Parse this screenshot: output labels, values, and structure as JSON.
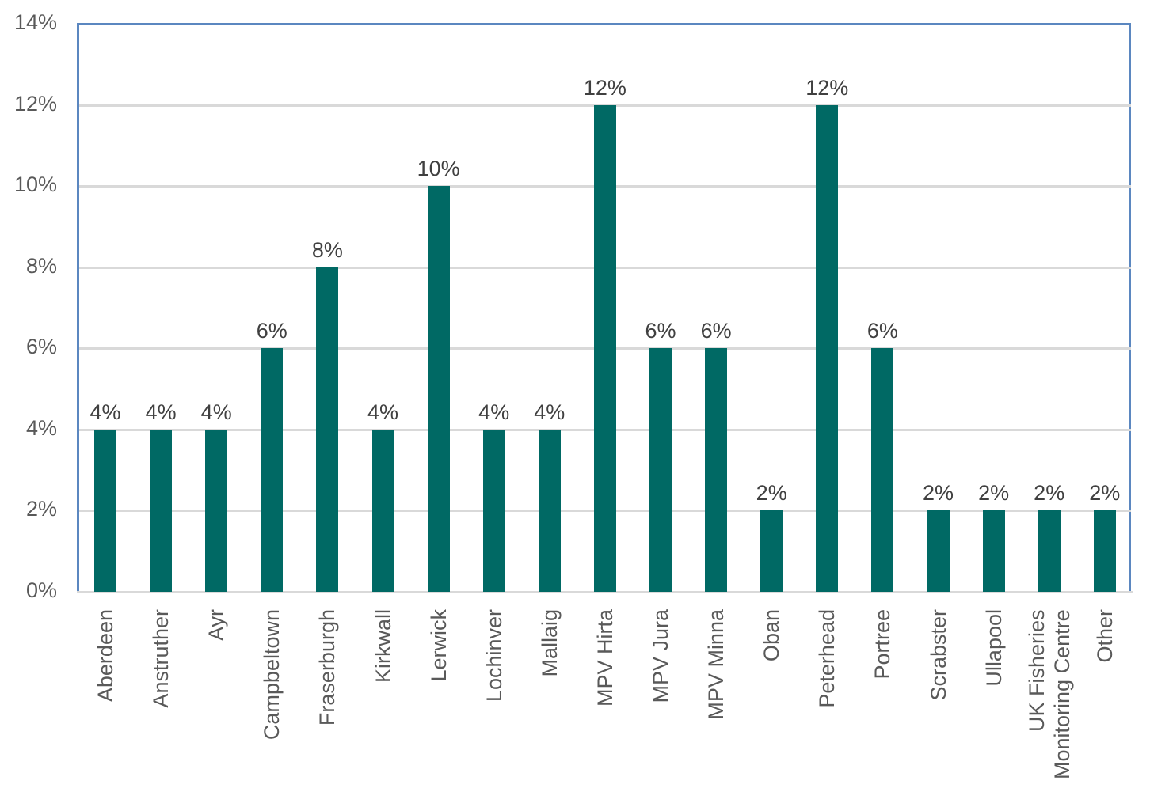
{
  "chart_data": {
    "type": "bar",
    "title": "",
    "xlabel": "",
    "ylabel": "",
    "ylim": [
      0,
      14
    ],
    "yticks": [
      "0%",
      "2%",
      "4%",
      "6%",
      "8%",
      "10%",
      "12%",
      "14%"
    ],
    "grid": true,
    "legend": null,
    "bar_color": "#006964",
    "frame_color": "#5b87c0",
    "categories": [
      "Aberdeen",
      "Anstruther",
      "Ayr",
      "Campbeltown",
      "Fraserburgh",
      "Kirkwall",
      "Lerwick",
      "Lochinver",
      "Mallaig",
      "MPV Hirta",
      "MPV Jura",
      "MPV Minna",
      "Oban",
      "Peterhead",
      "Portree",
      "Scrabster",
      "Ullapool",
      "UK Fisheries Monitoring Centre",
      "Other"
    ],
    "values": [
      4,
      4,
      4,
      6,
      8,
      4,
      10,
      4,
      4,
      12,
      6,
      6,
      2,
      12,
      6,
      2,
      2,
      2,
      2
    ],
    "data_labels": [
      "4%",
      "4%",
      "4%",
      "6%",
      "8%",
      "4%",
      "10%",
      "4%",
      "4%",
      "12%",
      "6%",
      "6%",
      "2%",
      "12%",
      "6%",
      "2%",
      "2%",
      "2%",
      "2%"
    ]
  }
}
